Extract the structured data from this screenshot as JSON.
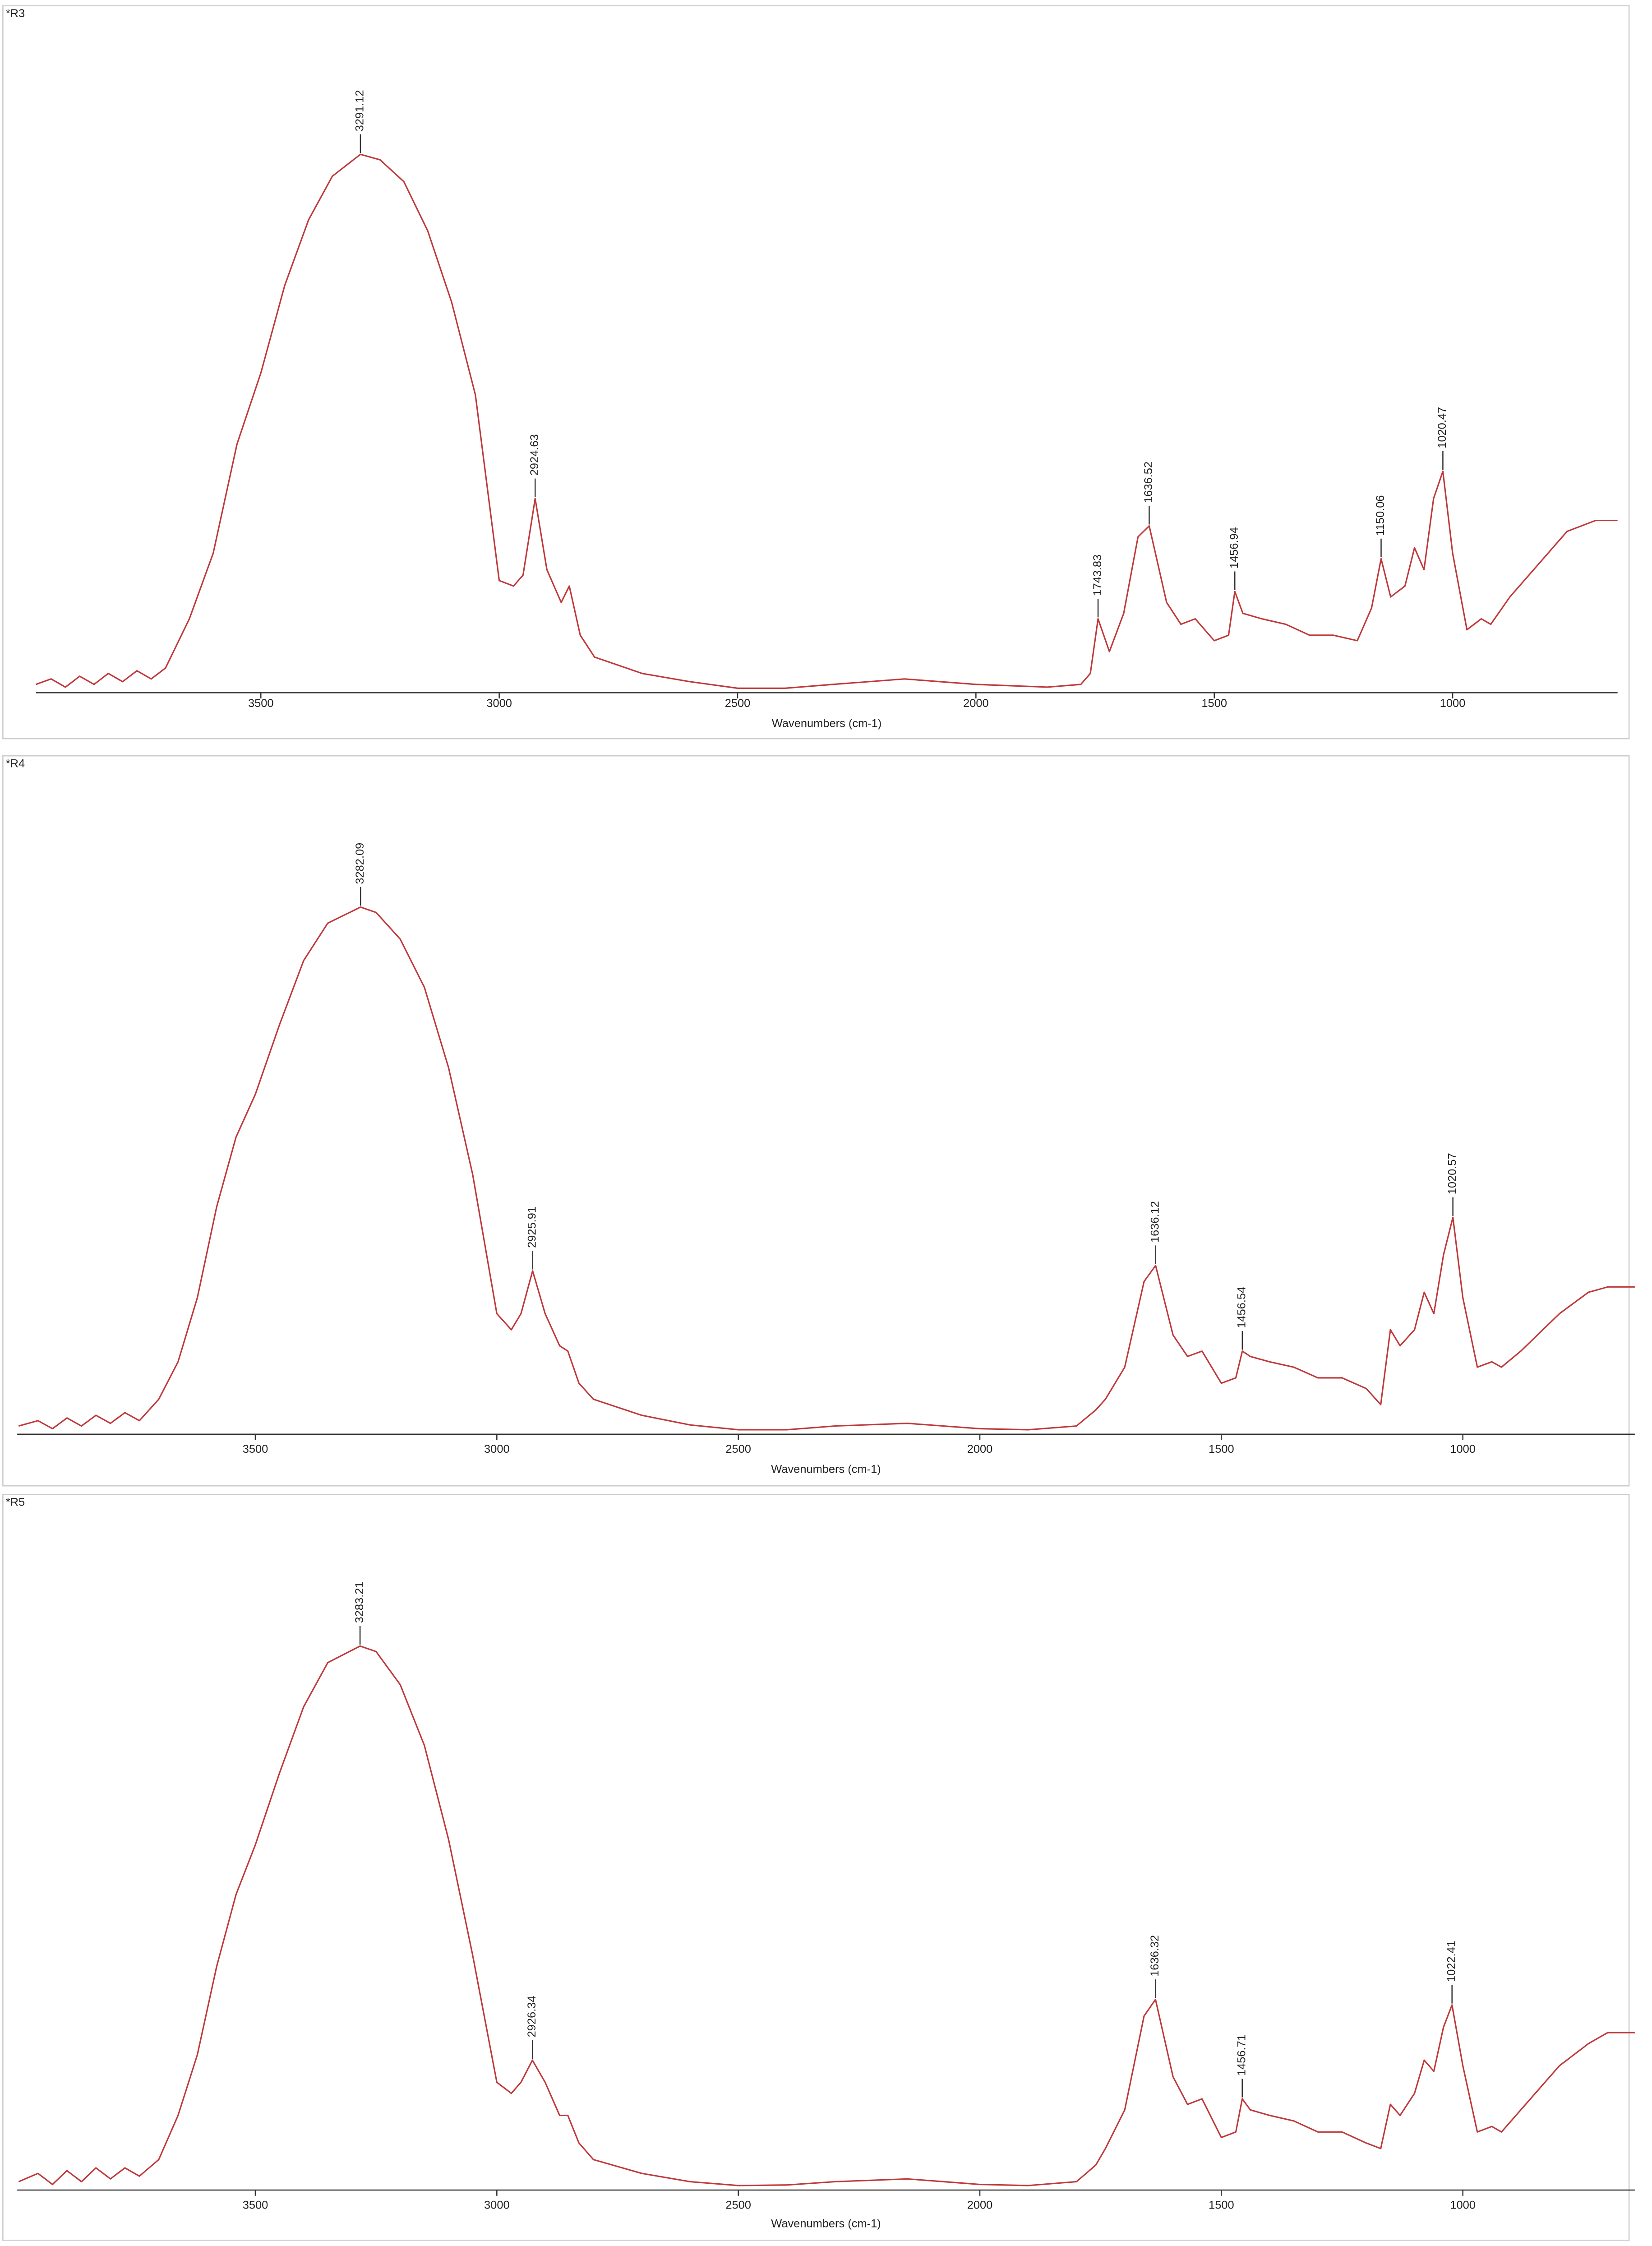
{
  "chart_data": [
    {
      "type": "line",
      "title": "*R3",
      "x_label": "Wavenumbers (cm-1)",
      "color": "#c0393b",
      "xlim": [
        3972,
        654
      ],
      "ylim": [
        0,
        1
      ],
      "xticks": [
        3500,
        3000,
        2500,
        2000,
        1500,
        1000
      ],
      "x": [
        3972,
        3940,
        3910,
        3880,
        3850,
        3820,
        3790,
        3760,
        3730,
        3700,
        3650,
        3600,
        3550,
        3500,
        3450,
        3400,
        3350,
        3291.12,
        3250,
        3200,
        3150,
        3100,
        3050,
        3000,
        2970,
        2950,
        2924.63,
        2900,
        2870,
        2853,
        2830,
        2800,
        2700,
        2600,
        2500,
        2400,
        2300,
        2150,
        2000,
        1850,
        1780,
        1760,
        1743.83,
        1720,
        1690,
        1660,
        1636.52,
        1600,
        1570,
        1540,
        1500,
        1470,
        1456.94,
        1440,
        1400,
        1350,
        1300,
        1250,
        1200,
        1170,
        1150.06,
        1130,
        1100,
        1080,
        1060,
        1040,
        1020.47,
        1000,
        970,
        940,
        920,
        880,
        800,
        760,
        700,
        654
      ],
      "values": [
        0.01,
        0.02,
        0.005,
        0.025,
        0.01,
        0.03,
        0.015,
        0.035,
        0.02,
        0.04,
        0.13,
        0.25,
        0.45,
        0.58,
        0.74,
        0.86,
        0.94,
        0.98,
        0.97,
        0.93,
        0.84,
        0.71,
        0.54,
        0.2,
        0.19,
        0.21,
        0.35,
        0.22,
        0.16,
        0.19,
        0.1,
        0.06,
        0.03,
        0.015,
        0.003,
        0.003,
        0.01,
        0.02,
        0.01,
        0.005,
        0.01,
        0.03,
        0.13,
        0.07,
        0.14,
        0.28,
        0.3,
        0.16,
        0.12,
        0.13,
        0.09,
        0.1,
        0.18,
        0.14,
        0.13,
        0.12,
        0.1,
        0.1,
        0.09,
        0.15,
        0.24,
        0.17,
        0.19,
        0.26,
        0.22,
        0.35,
        0.4,
        0.25,
        0.11,
        0.13,
        0.12,
        0.17,
        0.25,
        0.29,
        0.31,
        0.31
      ],
      "peaks": [
        {
          "x": 3291.12,
          "y": 0.98
        },
        {
          "x": 2924.63,
          "y": 0.35
        },
        {
          "x": 1743.83,
          "y": 0.13
        },
        {
          "x": 1636.52,
          "y": 0.3
        },
        {
          "x": 1456.94,
          "y": 0.18
        },
        {
          "x": 1150.06,
          "y": 0.24
        },
        {
          "x": 1020.47,
          "y": 0.4
        }
      ]
    },
    {
      "type": "line",
      "title": "*R4",
      "x_label": "Wavenumbers (cm-1)",
      "color": "#c0393b",
      "xlim": [
        3993,
        644
      ],
      "ylim": [
        0,
        1
      ],
      "xticks": [
        3500,
        3000,
        2500,
        2000,
        1500,
        1000
      ],
      "x": [
        3990,
        3950,
        3920,
        3890,
        3860,
        3830,
        3800,
        3770,
        3740,
        3700,
        3660,
        3620,
        3580,
        3540,
        3500,
        3450,
        3400,
        3350,
        3282.09,
        3250,
        3200,
        3150,
        3100,
        3050,
        3000,
        2970,
        2950,
        2925.91,
        2900,
        2870,
        2853,
        2830,
        2800,
        2700,
        2600,
        2500,
        2400,
        2300,
        2150,
        2000,
        1900,
        1800,
        1760,
        1740,
        1700,
        1660,
        1636.12,
        1600,
        1570,
        1540,
        1500,
        1470,
        1456.54,
        1440,
        1400,
        1350,
        1300,
        1250,
        1200,
        1170,
        1150,
        1130,
        1100,
        1080,
        1060,
        1040,
        1020.57,
        1000,
        970,
        940,
        920,
        880,
        800,
        740,
        700,
        644
      ],
      "values": [
        0.01,
        0.02,
        0.005,
        0.025,
        0.01,
        0.03,
        0.015,
        0.035,
        0.02,
        0.06,
        0.13,
        0.25,
        0.42,
        0.55,
        0.63,
        0.76,
        0.88,
        0.95,
        0.98,
        0.97,
        0.92,
        0.83,
        0.68,
        0.48,
        0.22,
        0.19,
        0.22,
        0.3,
        0.22,
        0.16,
        0.15,
        0.09,
        0.06,
        0.03,
        0.012,
        0.003,
        0.003,
        0.01,
        0.015,
        0.005,
        0.003,
        0.01,
        0.04,
        0.06,
        0.12,
        0.28,
        0.31,
        0.18,
        0.14,
        0.15,
        0.09,
        0.1,
        0.15,
        0.14,
        0.13,
        0.12,
        0.1,
        0.1,
        0.08,
        0.05,
        0.19,
        0.16,
        0.19,
        0.26,
        0.22,
        0.33,
        0.4,
        0.25,
        0.12,
        0.13,
        0.12,
        0.15,
        0.22,
        0.26,
        0.27,
        0.27
      ],
      "peaks": [
        {
          "x": 3282.09,
          "y": 0.98
        },
        {
          "x": 2925.91,
          "y": 0.3
        },
        {
          "x": 1636.12,
          "y": 0.31
        },
        {
          "x": 1456.54,
          "y": 0.15
        },
        {
          "x": 1020.57,
          "y": 0.4
        }
      ]
    },
    {
      "type": "line",
      "title": "*R5",
      "x_label": "Wavenumbers (cm-1)",
      "color": "#c0393b",
      "xlim": [
        3993,
        644
      ],
      "ylim": [
        0,
        1
      ],
      "xticks": [
        3500,
        3000,
        2500,
        2000,
        1500,
        1000
      ],
      "x": [
        3990,
        3950,
        3920,
        3890,
        3860,
        3830,
        3800,
        3770,
        3740,
        3700,
        3660,
        3620,
        3580,
        3540,
        3500,
        3450,
        3400,
        3350,
        3283.21,
        3250,
        3200,
        3150,
        3100,
        3050,
        3000,
        2970,
        2950,
        2926.34,
        2900,
        2870,
        2853,
        2830,
        2800,
        2700,
        2600,
        2500,
        2400,
        2300,
        2150,
        2000,
        1900,
        1800,
        1760,
        1740,
        1700,
        1660,
        1636.32,
        1600,
        1570,
        1540,
        1500,
        1470,
        1456.71,
        1440,
        1400,
        1350,
        1300,
        1250,
        1200,
        1170,
        1150,
        1130,
        1100,
        1080,
        1060,
        1040,
        1022.41,
        1000,
        970,
        940,
        920,
        880,
        800,
        740,
        700,
        644
      ],
      "values": [
        0.01,
        0.025,
        0.005,
        0.03,
        0.01,
        0.035,
        0.015,
        0.035,
        0.02,
        0.05,
        0.13,
        0.24,
        0.4,
        0.53,
        0.62,
        0.75,
        0.87,
        0.95,
        0.98,
        0.97,
        0.91,
        0.8,
        0.63,
        0.42,
        0.19,
        0.17,
        0.19,
        0.23,
        0.19,
        0.13,
        0.13,
        0.08,
        0.05,
        0.025,
        0.01,
        0.003,
        0.004,
        0.01,
        0.015,
        0.005,
        0.003,
        0.01,
        0.04,
        0.07,
        0.14,
        0.31,
        0.34,
        0.2,
        0.15,
        0.16,
        0.09,
        0.1,
        0.16,
        0.14,
        0.13,
        0.12,
        0.1,
        0.1,
        0.08,
        0.07,
        0.15,
        0.13,
        0.17,
        0.23,
        0.21,
        0.29,
        0.33,
        0.22,
        0.1,
        0.11,
        0.1,
        0.14,
        0.22,
        0.26,
        0.28,
        0.28
      ],
      "peaks": [
        {
          "x": 3283.21,
          "y": 0.98
        },
        {
          "x": 2926.34,
          "y": 0.23
        },
        {
          "x": 1636.32,
          "y": 0.34
        },
        {
          "x": 1456.71,
          "y": 0.16
        },
        {
          "x": 1022.41,
          "y": 0.33
        }
      ]
    }
  ]
}
